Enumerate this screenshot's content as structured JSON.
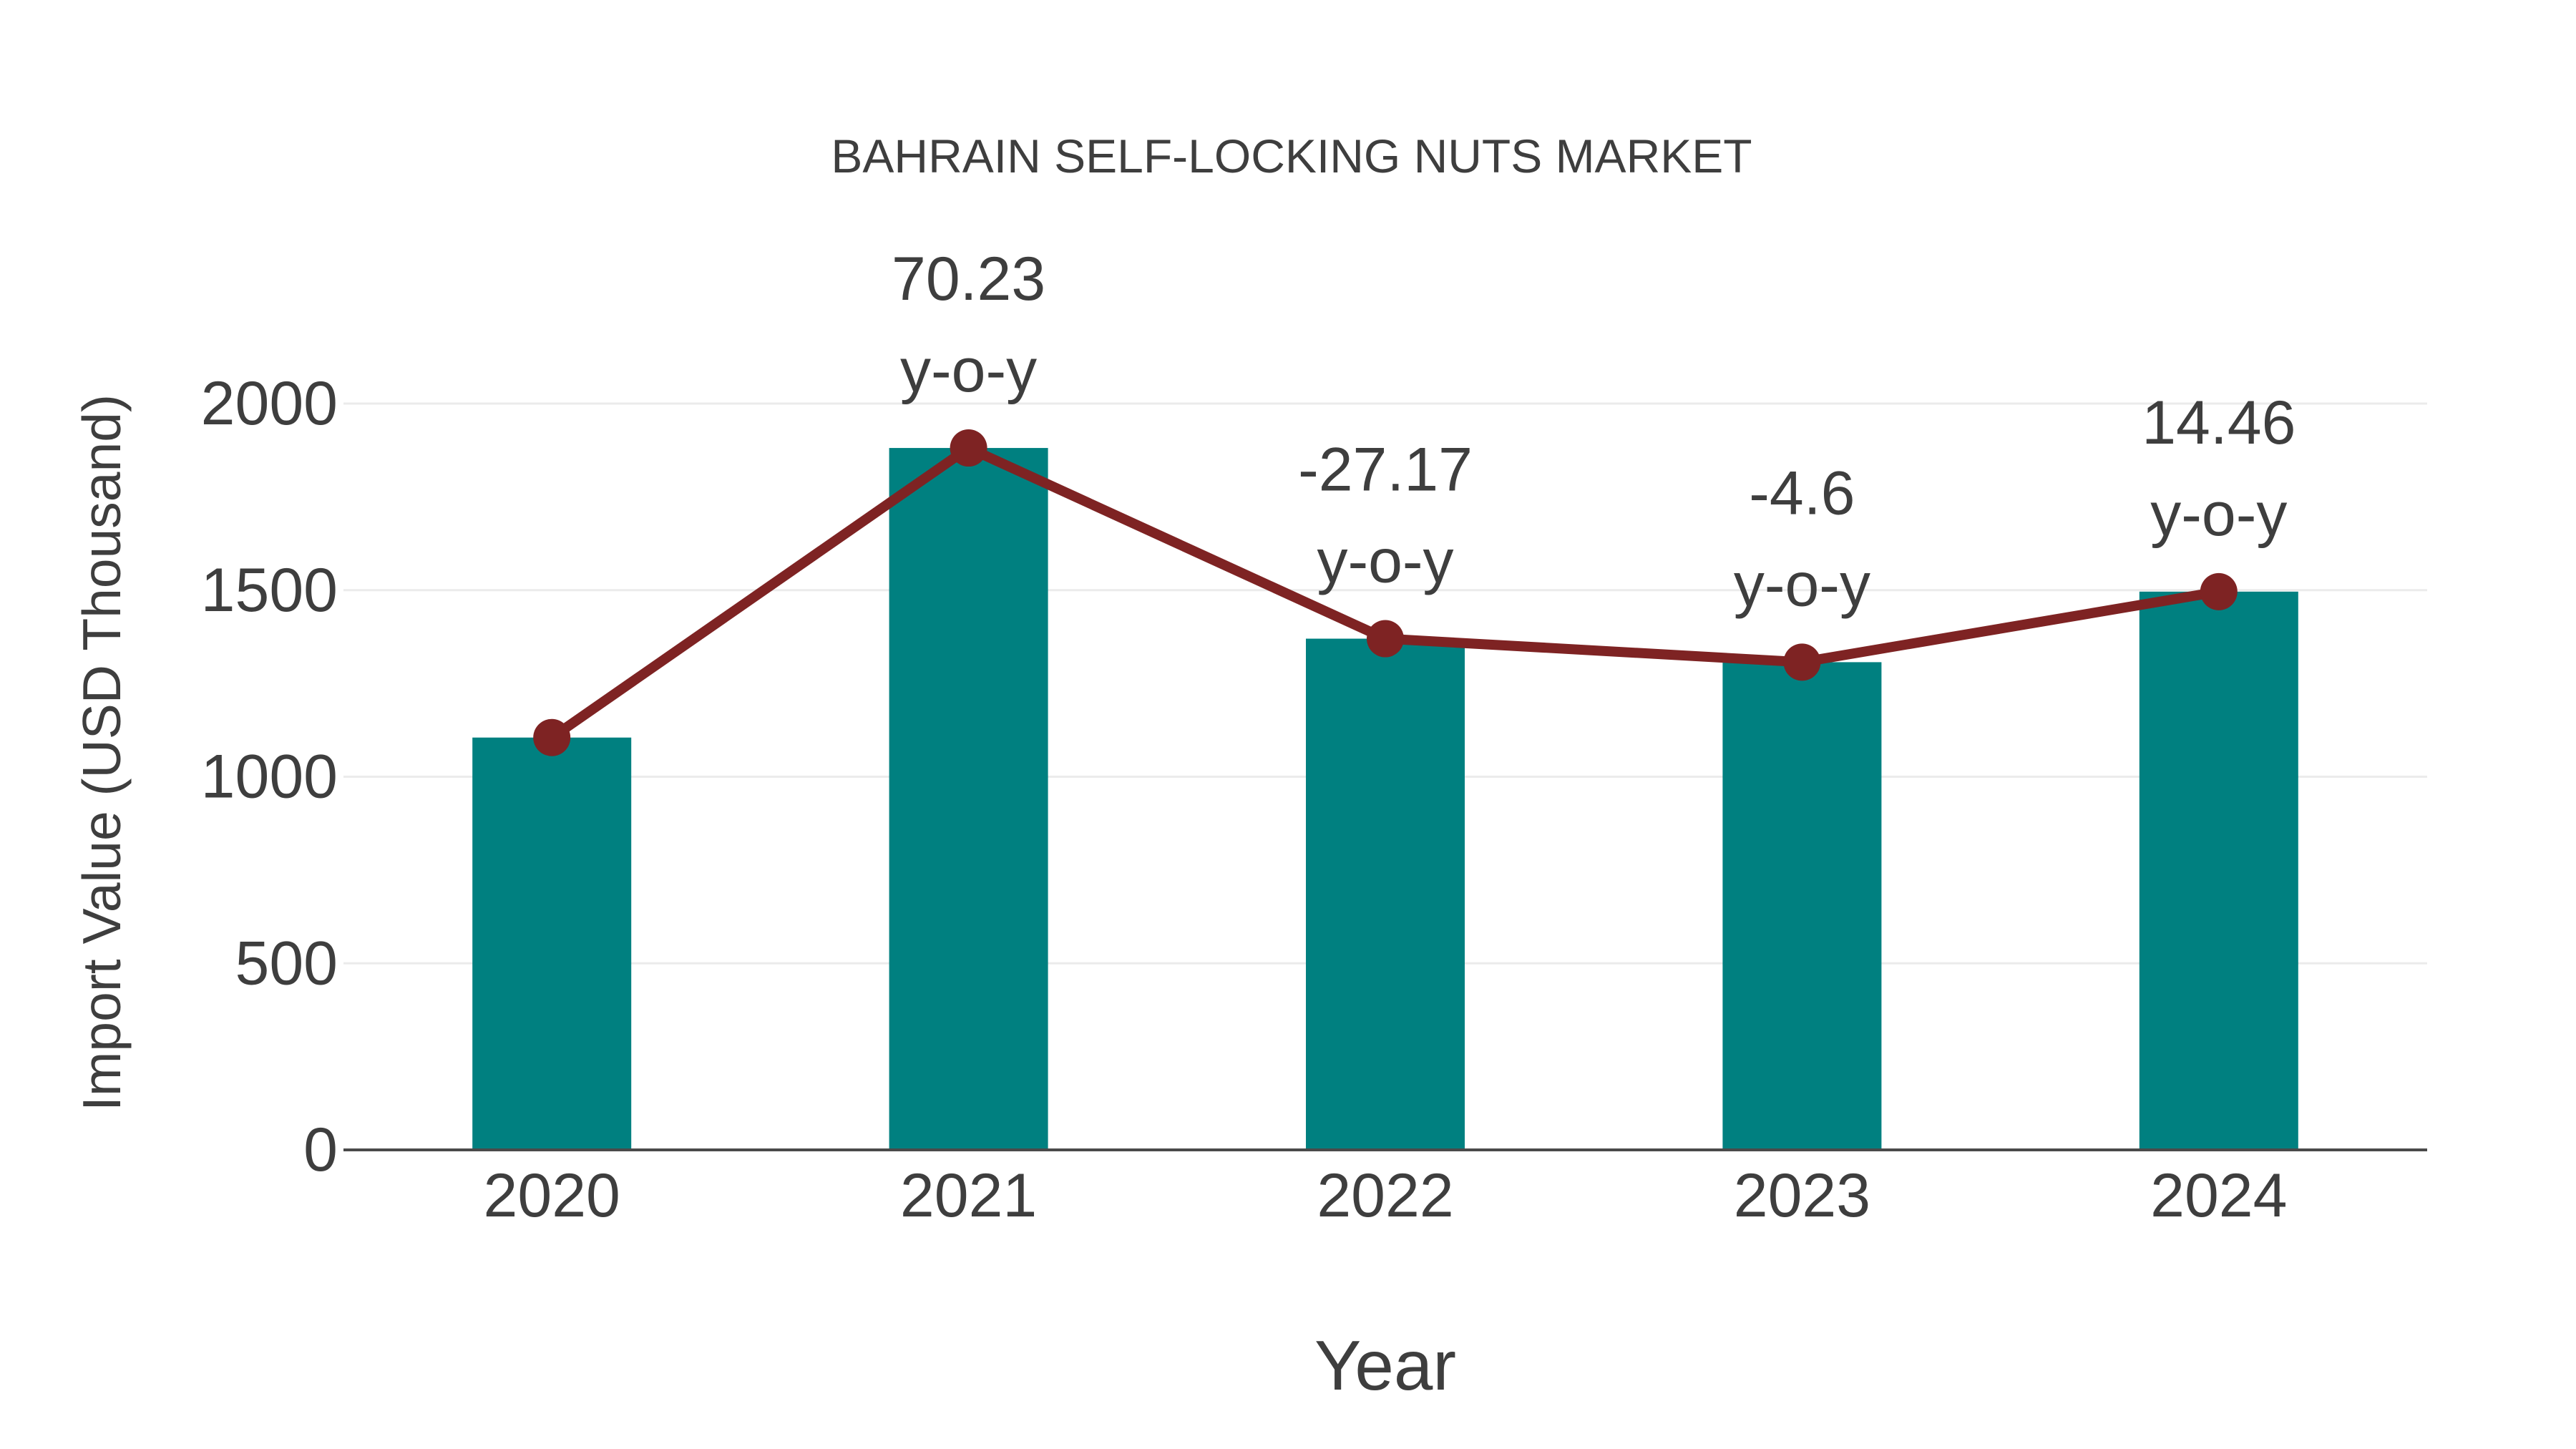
{
  "page": {
    "background": "#FFFFFF"
  },
  "chart_data": {
    "type": "bar",
    "title": "BAHRAIN SELF-LOCKING NUTS MARKET",
    "xlabel": "Year",
    "ylabel": "Import Value (USD Thousand)",
    "categories": [
      "2020",
      "2021",
      "2022",
      "2023",
      "2024"
    ],
    "series": [
      {
        "name": "Import Value bars",
        "type": "bar",
        "values": [
          1105,
          1881,
          1370,
          1307,
          1496
        ],
        "color": "#008080"
      },
      {
        "name": "Import Value trend line",
        "type": "line",
        "values": [
          1105,
          1881,
          1370,
          1307,
          1496
        ],
        "color": "#7E2323"
      }
    ],
    "annotations": [
      {
        "category": "2021",
        "value_label": "70.23",
        "suffix_label": "y-o-y"
      },
      {
        "category": "2022",
        "value_label": "-27.17",
        "suffix_label": "y-o-y"
      },
      {
        "category": "2023",
        "value_label": "-4.6",
        "suffix_label": "y-o-y"
      },
      {
        "category": "2024",
        "value_label": "14.46",
        "suffix_label": "y-o-y"
      }
    ],
    "yticks": [
      "0",
      "500",
      "1000",
      "1500",
      "2000"
    ],
    "ytick_values": [
      0,
      500,
      1000,
      1500,
      2000
    ],
    "ylim": [
      0,
      2085
    ],
    "grid": true,
    "legend_position": "none",
    "colors": {
      "bar": "#008080",
      "line": "#7E2323",
      "marker": "#7E2323",
      "text": "#3E3E3E",
      "axis_line": "#4A4A4A",
      "gridline": "#EBEBEB",
      "background": "#FFFFFF"
    }
  }
}
